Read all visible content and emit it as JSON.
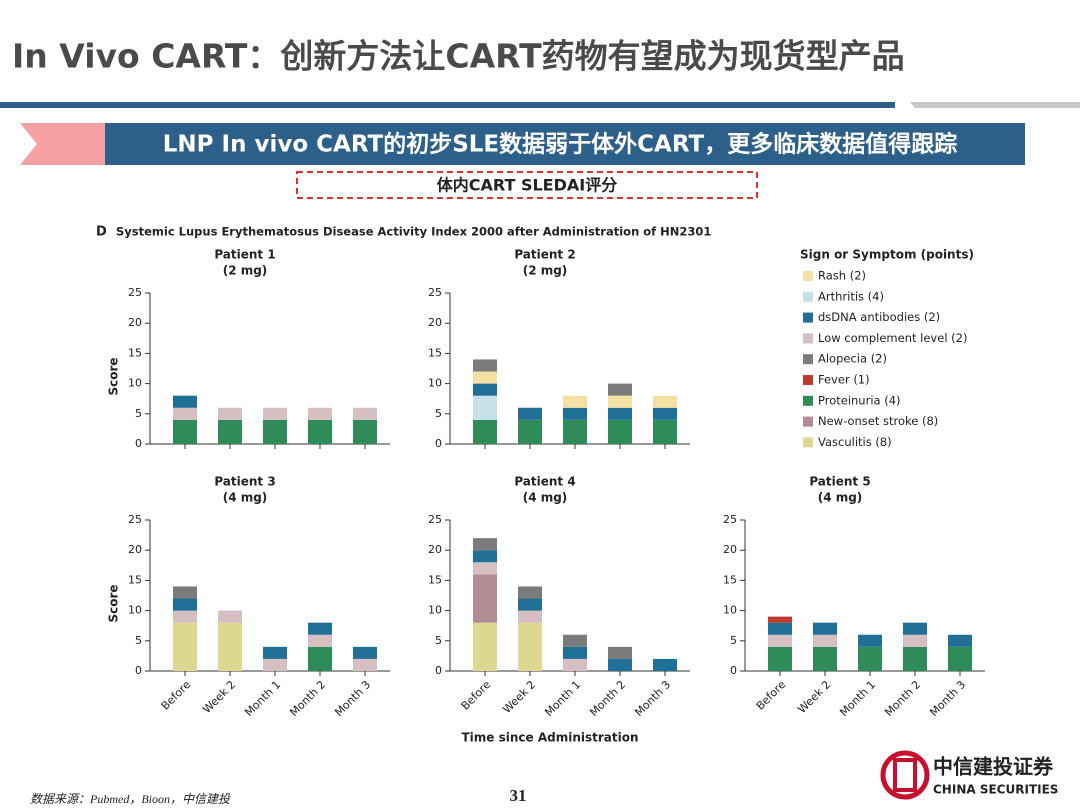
{
  "title": "In Vivo CART：创新方法让CART药物有望成为现货型产品",
  "banner": "LNP In vivo CART的初步SLE数据弱于体外CART，更多临床数据值得跟踪",
  "box_label": "体内CART SLEDAI评分",
  "panel_label": "D",
  "panel_title": "Systemic Lupus Erythematosus Disease Activity Index 2000 after Administration of HN2301",
  "source": "数据来源：Pubmed，Bioon，中信建投",
  "page_number": 31,
  "logo_cn": "中信建投证券",
  "logo_en": "CHINA SECURITIES",
  "chart_data": [
    {
      "type": "bar",
      "title": "Patient 1",
      "subtitle": "(2 mg)",
      "y_label": "Score",
      "legend_title": "Sign or Symptom (points)",
      "categories": [
        null,
        null,
        null,
        null,
        null
      ],
      "ylim": [
        0,
        25
      ],
      "yticks": [
        0,
        5,
        10,
        15,
        20,
        25
      ],
      "series": [
        {
          "name": "Rash (2)",
          "color": "#f5e0a3",
          "values": [
            0,
            0,
            0,
            0,
            0
          ]
        },
        {
          "name": "Arthritis (4)",
          "color": "#c6e1ea",
          "values": [
            0,
            0,
            0,
            0,
            0
          ]
        },
        {
          "name": "dsDNA antibodies (2)",
          "color": "#1f6f97",
          "values": [
            2,
            0,
            0,
            0,
            0
          ]
        },
        {
          "name": "Low complement level (2)",
          "color": "#d6bfc3",
          "values": [
            2,
            2,
            2,
            2,
            2
          ]
        },
        {
          "name": "Alopecia (2)",
          "color": "#7b7b7b",
          "values": [
            0,
            0,
            0,
            0,
            0
          ]
        },
        {
          "name": "Fever (1)",
          "color": "#c23b2a",
          "values": [
            0,
            0,
            0,
            0,
            0
          ]
        },
        {
          "name": "Proteinuria (4)",
          "color": "#2f8b57",
          "values": [
            4,
            4,
            4,
            4,
            4
          ]
        },
        {
          "name": "New-onset stroke (8)",
          "color": "#b48c95",
          "values": [
            0,
            0,
            0,
            0,
            0
          ]
        },
        {
          "name": "Vasculitis (8)",
          "color": "#ddd78f",
          "values": [
            0,
            0,
            0,
            0,
            0
          ]
        }
      ]
    },
    {
      "type": "bar",
      "title": "Patient 2",
      "subtitle": "(2 mg)",
      "categories": [
        null,
        null,
        null,
        null,
        null
      ],
      "ylim": [
        0,
        25
      ],
      "yticks": [
        0,
        5,
        10,
        15,
        20,
        25
      ],
      "series": [
        {
          "color": "#f5e0a3",
          "values": [
            2,
            0,
            2,
            2,
            2
          ]
        },
        {
          "color": "#c6e1ea",
          "values": [
            4,
            0,
            0,
            0,
            0
          ]
        },
        {
          "color": "#1f6f97",
          "values": [
            2,
            2,
            2,
            2,
            2
          ]
        },
        {
          "color": "#d6bfc3",
          "values": [
            0,
            0,
            0,
            0,
            0
          ]
        },
        {
          "color": "#7b7b7b",
          "values": [
            2,
            0,
            0,
            2,
            0
          ]
        },
        {
          "color": "#c23b2a",
          "values": [
            0,
            0,
            0,
            0,
            0
          ]
        },
        {
          "color": "#2f8b57",
          "values": [
            4,
            4,
            4,
            4,
            4
          ]
        },
        {
          "color": "#b48c95",
          "values": [
            0,
            0,
            0,
            0,
            0
          ]
        },
        {
          "color": "#ddd78f",
          "values": [
            0,
            0,
            0,
            0,
            0
          ]
        }
      ]
    },
    {
      "type": "bar",
      "title": "Patient 3",
      "subtitle": "(4 mg)",
      "y_label": "Score",
      "categories": [
        "Before",
        "Week 2",
        "Month 1",
        "Month 2",
        "Month 3"
      ],
      "ylim": [
        0,
        25
      ],
      "yticks": [
        0,
        5,
        10,
        15,
        20,
        25
      ],
      "series": [
        {
          "color": "#f5e0a3",
          "values": [
            0,
            0,
            0,
            0,
            0
          ]
        },
        {
          "color": "#c6e1ea",
          "values": [
            0,
            0,
            0,
            0,
            0
          ]
        },
        {
          "color": "#1f6f97",
          "values": [
            2,
            0,
            2,
            2,
            2
          ]
        },
        {
          "color": "#d6bfc3",
          "values": [
            2,
            2,
            2,
            2,
            2
          ]
        },
        {
          "color": "#7b7b7b",
          "values": [
            2,
            0,
            0,
            0,
            0
          ]
        },
        {
          "color": "#c23b2a",
          "values": [
            0,
            0,
            0,
            0,
            0
          ]
        },
        {
          "color": "#2f8b57",
          "values": [
            0,
            0,
            0,
            4,
            0
          ]
        },
        {
          "color": "#b48c95",
          "values": [
            0,
            0,
            0,
            0,
            0
          ]
        },
        {
          "color": "#ddd78f",
          "values": [
            8,
            8,
            0,
            0,
            0
          ]
        }
      ]
    },
    {
      "type": "bar",
      "title": "Patient 4",
      "subtitle": "(4 mg)",
      "x_label": "Time since Administration",
      "categories": [
        "Before",
        "Week 2",
        "Month 1",
        "Month 2",
        "Month 3"
      ],
      "ylim": [
        0,
        25
      ],
      "yticks": [
        0,
        5,
        10,
        15,
        20,
        25
      ],
      "series": [
        {
          "color": "#f5e0a3",
          "values": [
            0,
            0,
            0,
            0,
            0
          ]
        },
        {
          "color": "#c6e1ea",
          "values": [
            0,
            0,
            0,
            0,
            0
          ]
        },
        {
          "color": "#1f6f97",
          "values": [
            2,
            2,
            2,
            2,
            2
          ]
        },
        {
          "color": "#d6bfc3",
          "values": [
            2,
            2,
            2,
            0,
            0
          ]
        },
        {
          "color": "#7b7b7b",
          "values": [
            2,
            2,
            2,
            2,
            0
          ]
        },
        {
          "color": "#c23b2a",
          "values": [
            0,
            0,
            0,
            0,
            0
          ]
        },
        {
          "color": "#2f8b57",
          "values": [
            0,
            0,
            0,
            0,
            0
          ]
        },
        {
          "color": "#b48c95",
          "values": [
            8,
            0,
            0,
            0,
            0
          ]
        },
        {
          "color": "#ddd78f",
          "values": [
            8,
            8,
            0,
            0,
            0
          ]
        }
      ]
    },
    {
      "type": "bar",
      "title": "Patient 5",
      "subtitle": "(4 mg)",
      "categories": [
        "Before",
        "Week 2",
        "Month 1",
        "Month 2",
        "Month 3"
      ],
      "ylim": [
        0,
        25
      ],
      "yticks": [
        0,
        5,
        10,
        15,
        20,
        25
      ],
      "series": [
        {
          "color": "#f5e0a3",
          "values": [
            0,
            0,
            0,
            0,
            0
          ]
        },
        {
          "color": "#c6e1ea",
          "values": [
            0,
            0,
            0,
            0,
            0
          ]
        },
        {
          "color": "#1f6f97",
          "values": [
            2,
            2,
            2,
            2,
            2
          ]
        },
        {
          "color": "#d6bfc3",
          "values": [
            2,
            2,
            0,
            2,
            0
          ]
        },
        {
          "color": "#7b7b7b",
          "values": [
            0,
            0,
            0,
            0,
            0
          ]
        },
        {
          "color": "#c23b2a",
          "values": [
            1,
            0,
            0,
            0,
            0
          ]
        },
        {
          "color": "#2f8b57",
          "values": [
            4,
            4,
            4,
            4,
            4
          ]
        },
        {
          "color": "#b48c95",
          "values": [
            0,
            0,
            0,
            0,
            0
          ]
        },
        {
          "color": "#ddd78f",
          "values": [
            0,
            0,
            0,
            0,
            0
          ]
        }
      ]
    }
  ]
}
